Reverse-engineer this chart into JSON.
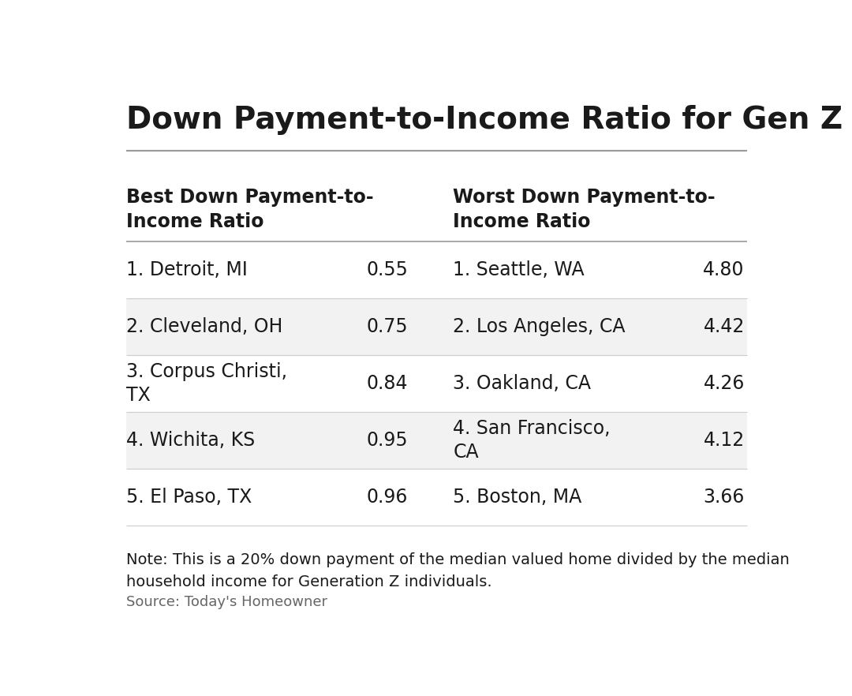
{
  "title": "Down Payment-to-Income Ratio for Gen Z",
  "col1_header": "Best Down Payment-to-\nIncome Ratio",
  "col3_header": "Worst Down Payment-to-\nIncome Ratio",
  "best_cities": [
    "1. Detroit, MI",
    "2. Cleveland, OH",
    "3. Corpus Christi,\nTX",
    "4. Wichita, KS",
    "5. El Paso, TX"
  ],
  "best_values": [
    "0.55",
    "0.75",
    "0.84",
    "0.95",
    "0.96"
  ],
  "worst_cities": [
    "1. Seattle, WA",
    "2. Los Angeles, CA",
    "3. Oakland, CA",
    "4. San Francisco,\nCA",
    "5. Boston, MA"
  ],
  "worst_values": [
    "4.80",
    "4.42",
    "4.26",
    "4.12",
    "3.66"
  ],
  "note": "Note: This is a 20% down payment of the median valued home divided by the median\nhousehold income for Generation Z individuals.",
  "source": "Source: Today's Homeowner",
  "bg_color": "#ffffff",
  "row_alt_color": "#f2f2f2",
  "row_white_color": "#ffffff",
  "text_color": "#1a1a1a",
  "header_color": "#1a1a1a",
  "line_color_dark": "#999999",
  "line_color_light": "#cccccc",
  "title_fontsize": 28,
  "header_fontsize": 17,
  "cell_fontsize": 17,
  "note_fontsize": 14,
  "source_fontsize": 13
}
